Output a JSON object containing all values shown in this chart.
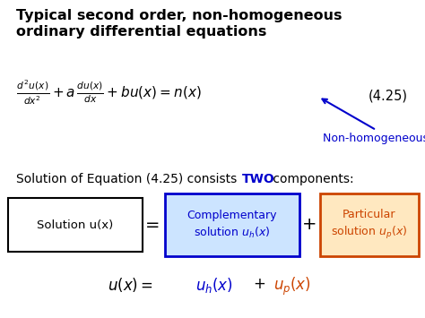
{
  "title_line1": "Typical second order, non-homogeneous",
  "title_line2": "ordinary differential equations",
  "title_color": "#000000",
  "title_fontsize": 11.5,
  "eq_number": "(4.25)",
  "annotation_text": "Non-homogeneous term",
  "annotation_color": "#0000cc",
  "box1_facecolor": "#ffffff",
  "box1_edgecolor": "#000000",
  "box2_facecolor": "#cce4ff",
  "box2_edgecolor": "#0000cc",
  "box2_textcolor": "#0000cc",
  "box3_facecolor": "#ffe8c0",
  "box3_edgecolor": "#cc4400",
  "box3_textcolor": "#cc4400",
  "bottom_eq_color_black": "#000000",
  "bottom_eq_color_blue": "#0000cc",
  "bottom_eq_color_red": "#cc4400",
  "background_color": "#ffffff",
  "solution_bold_color": "#0000cc"
}
